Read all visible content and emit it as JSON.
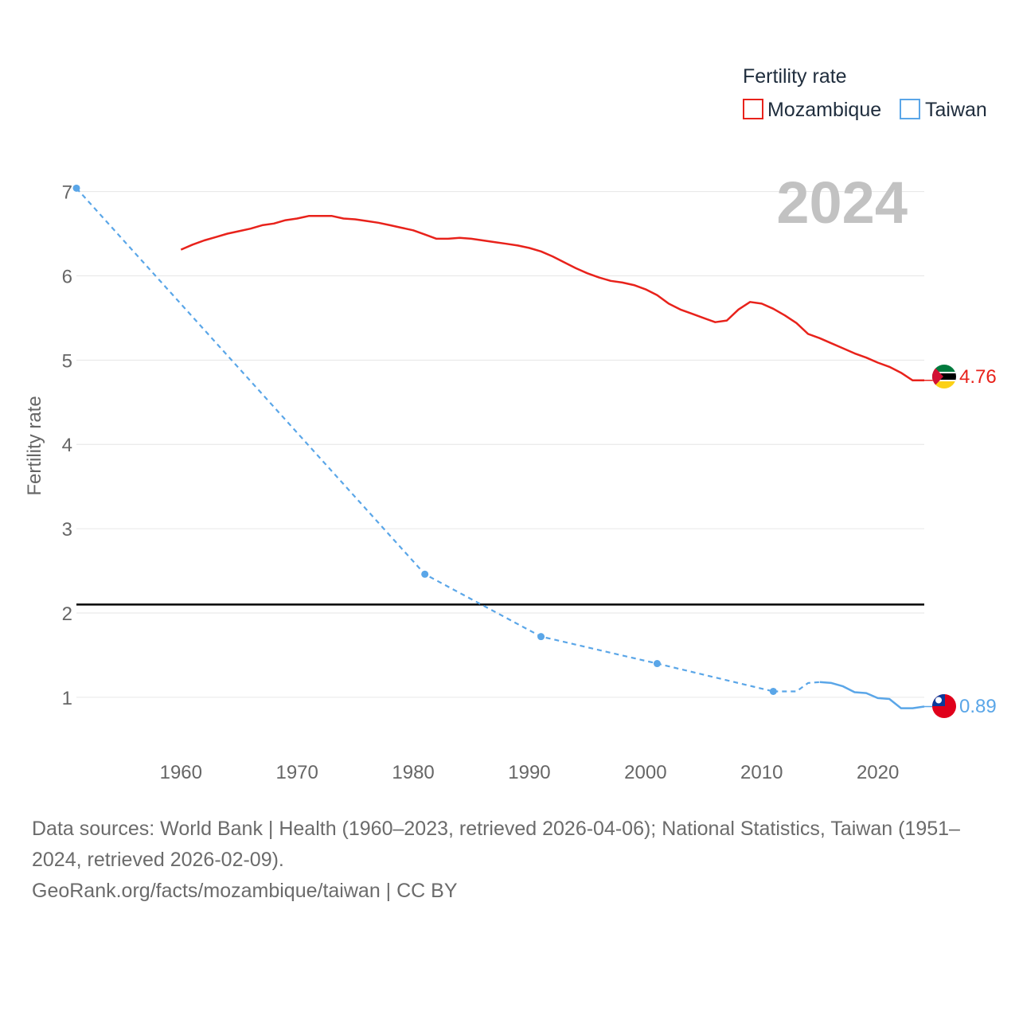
{
  "chart_data": {
    "type": "line",
    "year_label": "2024",
    "ylabel": "Fertility rate",
    "xlim": [
      1951,
      2024
    ],
    "ylim": [
      0.3,
      7.1
    ],
    "x_ticks": [
      1960,
      1970,
      1980,
      1990,
      2000,
      2010,
      2020
    ],
    "y_ticks": [
      1,
      2,
      3,
      4,
      5,
      6,
      7
    ],
    "reference_line": {
      "value": 2.1,
      "color": "#000000"
    },
    "legend": {
      "title": "Fertility rate",
      "position": "top-right"
    },
    "series": [
      {
        "name": "Mozambique",
        "color": "#e8221b",
        "style": "solid",
        "end_label": "4.76",
        "flag": "mozambique-flag",
        "points": [
          [
            1960,
            6.31
          ],
          [
            1961,
            6.37
          ],
          [
            1962,
            6.42
          ],
          [
            1963,
            6.46
          ],
          [
            1964,
            6.5
          ],
          [
            1965,
            6.53
          ],
          [
            1966,
            6.56
          ],
          [
            1967,
            6.6
          ],
          [
            1968,
            6.62
          ],
          [
            1969,
            6.66
          ],
          [
            1970,
            6.68
          ],
          [
            1971,
            6.71
          ],
          [
            1972,
            6.71
          ],
          [
            1973,
            6.71
          ],
          [
            1974,
            6.68
          ],
          [
            1975,
            6.67
          ],
          [
            1976,
            6.65
          ],
          [
            1977,
            6.63
          ],
          [
            1978,
            6.6
          ],
          [
            1979,
            6.57
          ],
          [
            1980,
            6.54
          ],
          [
            1981,
            6.49
          ],
          [
            1982,
            6.44
          ],
          [
            1983,
            6.44
          ],
          [
            1984,
            6.45
          ],
          [
            1985,
            6.44
          ],
          [
            1986,
            6.42
          ],
          [
            1987,
            6.4
          ],
          [
            1988,
            6.38
          ],
          [
            1989,
            6.36
          ],
          [
            1990,
            6.33
          ],
          [
            1991,
            6.29
          ],
          [
            1992,
            6.23
          ],
          [
            1993,
            6.16
          ],
          [
            1994,
            6.09
          ],
          [
            1995,
            6.03
          ],
          [
            1996,
            5.98
          ],
          [
            1997,
            5.94
          ],
          [
            1998,
            5.92
          ],
          [
            1999,
            5.89
          ],
          [
            2000,
            5.84
          ],
          [
            2001,
            5.77
          ],
          [
            2002,
            5.67
          ],
          [
            2003,
            5.6
          ],
          [
            2004,
            5.55
          ],
          [
            2005,
            5.5
          ],
          [
            2006,
            5.45
          ],
          [
            2007,
            5.47
          ],
          [
            2008,
            5.6
          ],
          [
            2009,
            5.69
          ],
          [
            2010,
            5.67
          ],
          [
            2011,
            5.61
          ],
          [
            2012,
            5.53
          ],
          [
            2013,
            5.44
          ],
          [
            2014,
            5.31
          ],
          [
            2015,
            5.26
          ],
          [
            2016,
            5.2
          ],
          [
            2017,
            5.14
          ],
          [
            2018,
            5.08
          ],
          [
            2019,
            5.03
          ],
          [
            2020,
            4.97
          ],
          [
            2021,
            4.92
          ],
          [
            2022,
            4.85
          ],
          [
            2023,
            4.76
          ],
          [
            2024,
            4.76
          ]
        ]
      },
      {
        "name": "Taiwan",
        "color": "#5aa6e8",
        "style": "dashed-then-solid",
        "end_label": "0.89",
        "flag": "taiwan-flag",
        "markers": [
          [
            1951,
            7.04
          ],
          [
            1981,
            2.46
          ],
          [
            1991,
            1.72
          ],
          [
            2001,
            1.4
          ],
          [
            2011,
            1.07
          ]
        ],
        "points": [
          [
            1951,
            7.04
          ],
          [
            1981,
            2.46
          ],
          [
            1991,
            1.72
          ],
          [
            2001,
            1.4
          ],
          [
            2011,
            1.07
          ],
          [
            2012,
            1.27
          ],
          [
            2013,
            1.07
          ],
          [
            2014,
            1.17
          ],
          [
            2015,
            1.18
          ],
          [
            2016,
            1.17
          ],
          [
            2017,
            1.13
          ],
          [
            2018,
            1.06
          ],
          [
            2019,
            1.05
          ],
          [
            2020,
            0.99
          ],
          [
            2021,
            0.98
          ],
          [
            2022,
            0.87
          ],
          [
            2023,
            0.87
          ],
          [
            2024,
            0.89
          ]
        ]
      }
    ]
  },
  "footer": {
    "sources_line": "Data sources: World Bank | Health (1960–2023, retrieved 2026-04-06); National Statistics, Taiwan (1951–2024, retrieved 2026-02-09).",
    "credit_line": "GeoRank.org/facts/mozambique/taiwan | CC BY"
  }
}
